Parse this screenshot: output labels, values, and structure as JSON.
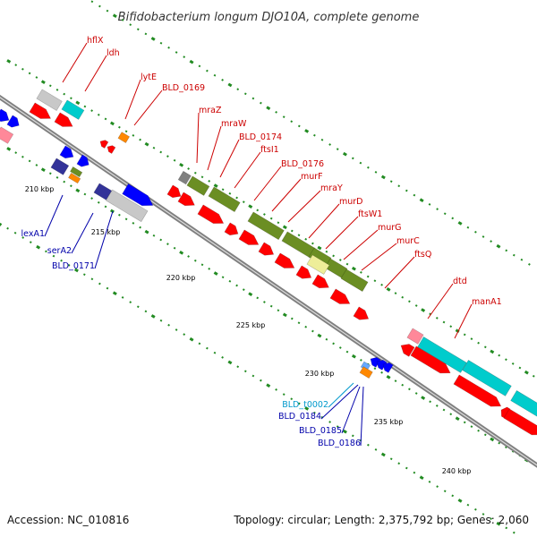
{
  "title": "Bifidobacterium longum DJO10A, complete genome",
  "footer": {
    "accession": "Accession: NC_010816",
    "topology": "Topology: circular; Length: 2,375,792 bp; Genes: 2,060"
  },
  "colors": {
    "red": "#ff0000",
    "blue": "#0000ff",
    "cyan": "#00cccc",
    "olive": "#6b8e23",
    "gray": "#c8c8c8",
    "pink": "#ff8899",
    "khaki": "#eeee99",
    "orange": "#ff8800",
    "navy": "#333399",
    "tick": "#228b22",
    "track": "#808080",
    "label_red": "#cc0000",
    "label_blue": "#0000aa",
    "label_cyan": "#0099cc"
  },
  "kbp_marks": [
    "210 kbp",
    "215 kbp",
    "220 kbp",
    "225 kbp",
    "230 kbp",
    "235 kbp",
    "240 kbp"
  ],
  "genes_top": [
    "hflX",
    "ldh",
    "lytE",
    "BLD_0169",
    "mraZ",
    "mraW",
    "BLD_0174",
    "ftsI1",
    "BLD_0176",
    "murF",
    "mraY",
    "murD",
    "ftsW1",
    "murG",
    "murC",
    "ftsQ",
    "dtd",
    "manA1"
  ],
  "genes_bottom": [
    "lexA1",
    "serA2",
    "BLD_0171",
    "BLD_t0002",
    "BLD_0184",
    "BLD_0185",
    "BLD_0186"
  ]
}
